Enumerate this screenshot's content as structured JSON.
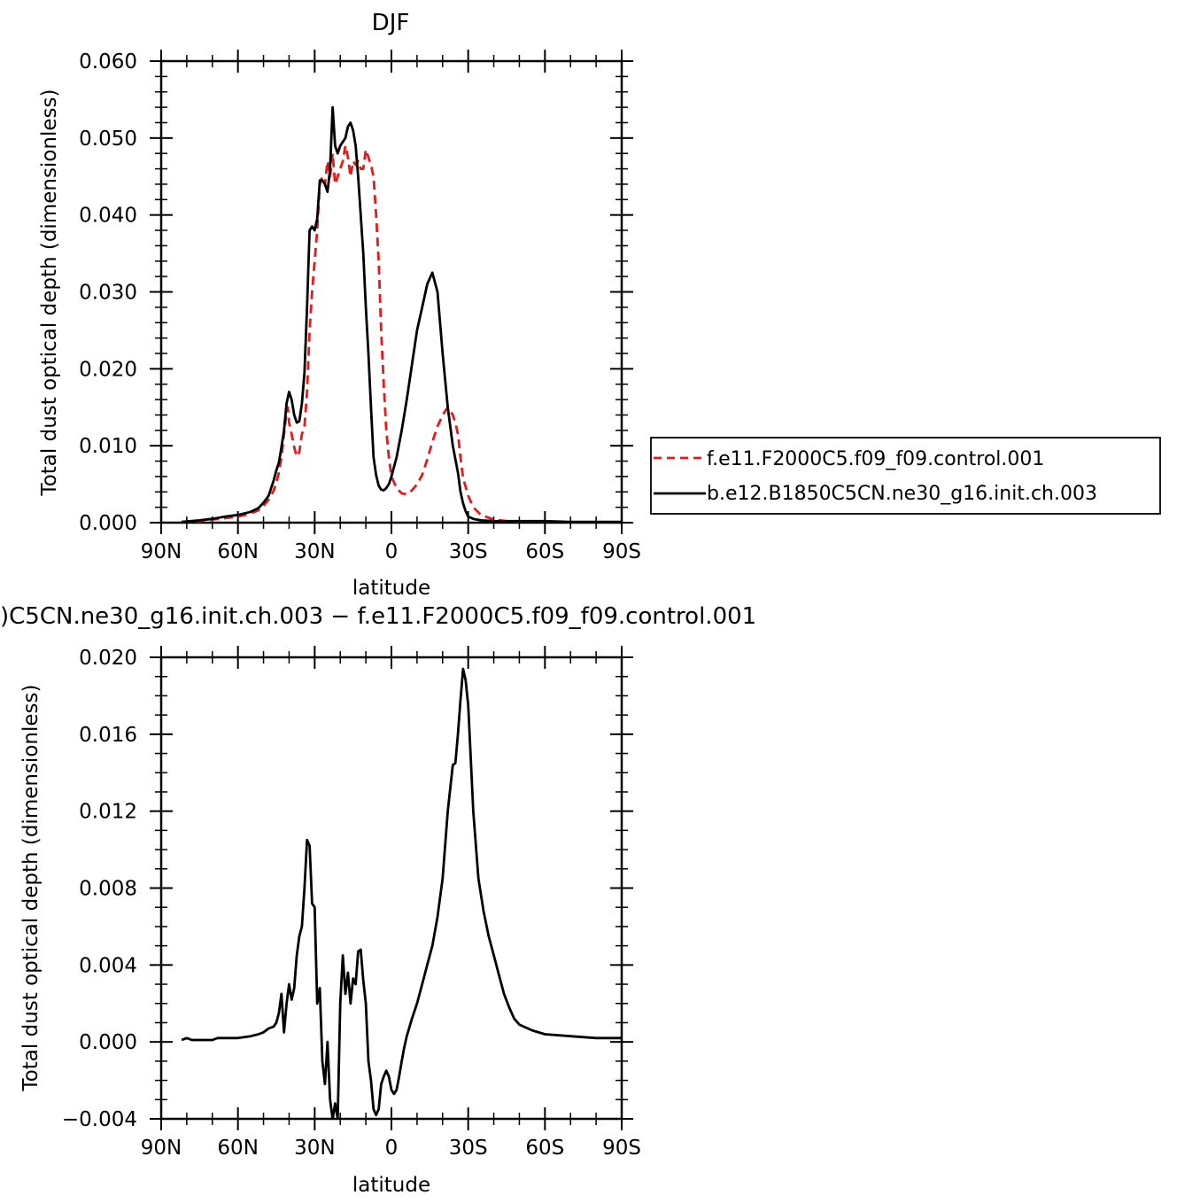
{
  "chart_data": [
    {
      "type": "line",
      "title": "DJF",
      "xlabel": "latitude",
      "ylabel": "Total dust optical depth (dimensionless)",
      "x_ticks": [
        "90N",
        "60N",
        "30N",
        "0",
        "30S",
        "60S",
        "90S"
      ],
      "x_tick_values": [
        90,
        60,
        30,
        0,
        -30,
        -60,
        -90
      ],
      "xlim": [
        90,
        -90
      ],
      "y_ticks": [
        "0.000",
        "0.010",
        "0.020",
        "0.030",
        "0.040",
        "0.050",
        "0.060"
      ],
      "ylim": [
        0.0,
        0.06
      ],
      "grid": false,
      "legend_placement": "right",
      "series": [
        {
          "name": "f.e11.F2000C5.f09_f09.control.001",
          "color": "#e41a1c",
          "dash": "dashed",
          "x": [
            82,
            75,
            70,
            65,
            60,
            55,
            52,
            50,
            48,
            46,
            45,
            44,
            43,
            42,
            41,
            40.5,
            40,
            39,
            38,
            37,
            36,
            35,
            34,
            33,
            32,
            31,
            30,
            29,
            28,
            27,
            26,
            25,
            24,
            23,
            22,
            21,
            20,
            19,
            18,
            17,
            16,
            15,
            14,
            13,
            12,
            11,
            10,
            9,
            8,
            7,
            6,
            5,
            4,
            3,
            2,
            1,
            0,
            -2,
            -4,
            -6,
            -8,
            -10,
            -12,
            -14,
            -16,
            -18,
            -20,
            -22,
            -24,
            -25,
            -26,
            -27,
            -28,
            -30,
            -32,
            -35,
            -40,
            -45,
            -50,
            -60,
            -70,
            -80,
            -90
          ],
          "y": [
            0.0001,
            0.0002,
            0.0004,
            0.0006,
            0.0008,
            0.0012,
            0.0016,
            0.0022,
            0.003,
            0.0042,
            0.0052,
            0.0065,
            0.0085,
            0.0115,
            0.0145,
            0.015,
            0.013,
            0.0115,
            0.0098,
            0.0086,
            0.0092,
            0.0115,
            0.0125,
            0.017,
            0.025,
            0.03,
            0.034,
            0.038,
            0.044,
            0.045,
            0.044,
            0.047,
            0.045,
            0.048,
            0.044,
            0.045,
            0.046,
            0.047,
            0.049,
            0.0475,
            0.045,
            0.047,
            0.0465,
            0.047,
            0.046,
            0.046,
            0.0485,
            0.0475,
            0.0465,
            0.045,
            0.04,
            0.034,
            0.025,
            0.018,
            0.012,
            0.0085,
            0.006,
            0.0045,
            0.0038,
            0.0037,
            0.0042,
            0.005,
            0.0062,
            0.0082,
            0.0105,
            0.0125,
            0.014,
            0.015,
            0.014,
            0.013,
            0.0115,
            0.0085,
            0.0058,
            0.0035,
            0.002,
            0.001,
            0.0004,
            0.0002,
            0.0001,
            5e-05,
            3e-05,
            2e-05,
            2e-05
          ]
        },
        {
          "name": "b.e12.B1850C5CN.ne30_g16.init.ch.003",
          "color": "#000000",
          "dash": "solid",
          "x": [
            82,
            75,
            70,
            65,
            60,
            55,
            52,
            50,
            48,
            46,
            45,
            44,
            43,
            42,
            41,
            40,
            39,
            38,
            37,
            36,
            35,
            34,
            33,
            32,
            31,
            30,
            29,
            28,
            27,
            26,
            25,
            24,
            23,
            22,
            21,
            20,
            19,
            18,
            17,
            16,
            15,
            14,
            13,
            12,
            11,
            10,
            9,
            8,
            7,
            6,
            5,
            4,
            3,
            2,
            1,
            0,
            -2,
            -4,
            -6,
            -8,
            -10,
            -12,
            -14,
            -16,
            -18,
            -20,
            -22,
            -24,
            -26,
            -27,
            -28,
            -29,
            -30,
            -32,
            -35,
            -40,
            -45,
            -50,
            -55,
            -60,
            -70,
            -80,
            -90
          ],
          "y": [
            0.0001,
            0.0003,
            0.0005,
            0.0008,
            0.001,
            0.0014,
            0.0019,
            0.0026,
            0.0035,
            0.0055,
            0.0068,
            0.0078,
            0.0098,
            0.012,
            0.0155,
            0.017,
            0.016,
            0.014,
            0.013,
            0.0132,
            0.0155,
            0.0195,
            0.028,
            0.038,
            0.0385,
            0.038,
            0.0395,
            0.0445,
            0.0445,
            0.044,
            0.043,
            0.046,
            0.054,
            0.049,
            0.048,
            0.049,
            0.0495,
            0.05,
            0.0515,
            0.052,
            0.051,
            0.049,
            0.045,
            0.04,
            0.035,
            0.028,
            0.022,
            0.015,
            0.0085,
            0.0062,
            0.0048,
            0.0043,
            0.0042,
            0.0045,
            0.005,
            0.006,
            0.0085,
            0.012,
            0.016,
            0.0205,
            0.025,
            0.028,
            0.031,
            0.0325,
            0.03,
            0.022,
            0.015,
            0.01,
            0.0065,
            0.004,
            0.0025,
            0.0015,
            0.0008,
            0.0005,
            0.0003,
            0.0002,
            0.0002,
            0.0002,
            0.0002,
            0.0002,
            0.0001,
            0.0001,
            0.0001
          ]
        }
      ]
    },
    {
      "type": "line",
      "title": ")C5CN.ne30_g16.init.ch.003 − f.e11.F2000C5.f09_f09.control.001",
      "xlabel": "latitude",
      "ylabel": "Total dust optical depth (dimensionless)",
      "x_ticks": [
        "90N",
        "60N",
        "30N",
        "0",
        "30S",
        "60S",
        "90S"
      ],
      "x_tick_values": [
        90,
        60,
        30,
        0,
        -30,
        -60,
        -90
      ],
      "xlim": [
        90,
        -90
      ],
      "y_ticks": [
        "−0.004",
        "0.000",
        "0.004",
        "0.008",
        "0.012",
        "0.016",
        "0.020"
      ],
      "ylim": [
        -0.004,
        0.02
      ],
      "grid": false,
      "series": [
        {
          "name": "",
          "color": "#000000",
          "dash": "solid",
          "x": [
            82,
            80,
            78,
            75,
            72,
            70,
            68,
            65,
            60,
            55,
            52,
            50,
            48,
            46,
            45,
            44,
            43,
            42,
            41,
            40,
            39,
            38,
            37,
            36,
            35,
            34,
            33,
            32,
            31,
            30,
            29,
            28,
            27,
            26,
            25,
            24,
            23,
            22,
            21,
            20,
            19,
            18,
            17,
            16,
            15,
            14,
            13,
            12,
            11,
            10,
            9,
            8,
            7,
            6,
            5,
            4,
            3,
            2,
            1,
            0,
            -1,
            -2,
            -3,
            -4,
            -5,
            -6,
            -8,
            -10,
            -12,
            -14,
            -16,
            -18,
            -20,
            -22,
            -24,
            -25,
            -26,
            -27,
            -28,
            -29,
            -30,
            -32,
            -34,
            -36,
            -38,
            -40,
            -42,
            -44,
            -46,
            -48,
            -50,
            -55,
            -60,
            -70,
            -80,
            -90
          ],
          "y": [
            0.0001,
            0.0002,
            0.0001,
            0.0001,
            0.0001,
            0.0001,
            0.0002,
            0.0002,
            0.0002,
            0.0003,
            0.0004,
            0.0005,
            0.0007,
            0.0008,
            0.001,
            0.0015,
            0.0025,
            0.0005,
            0.002,
            0.003,
            0.0022,
            0.0028,
            0.0045,
            0.0055,
            0.006,
            0.008,
            0.0105,
            0.0102,
            0.0072,
            0.007,
            0.002,
            0.0028,
            -0.001,
            -0.0022,
            0.0,
            -0.003,
            -0.004,
            -0.0032,
            -0.004,
            0.002,
            0.0045,
            0.0025,
            0.0036,
            0.002,
            0.0033,
            0.003,
            0.0047,
            0.0048,
            0.0032,
            0.002,
            -0.001,
            -0.002,
            -0.0035,
            -0.0038,
            -0.0035,
            -0.0022,
            -0.0018,
            -0.0015,
            -0.0018,
            -0.0025,
            -0.0027,
            -0.0025,
            -0.0018,
            -0.001,
            -0.0003,
            0.0003,
            0.0012,
            0.002,
            0.003,
            0.004,
            0.005,
            0.0065,
            0.0085,
            0.012,
            0.0144,
            0.0145,
            0.016,
            0.0178,
            0.0194,
            0.0188,
            0.0175,
            0.012,
            0.0085,
            0.0068,
            0.0055,
            0.0045,
            0.0035,
            0.0025,
            0.0018,
            0.0012,
            0.0009,
            0.0006,
            0.0004,
            0.0003,
            0.0002,
            0.0002
          ]
        }
      ]
    }
  ]
}
